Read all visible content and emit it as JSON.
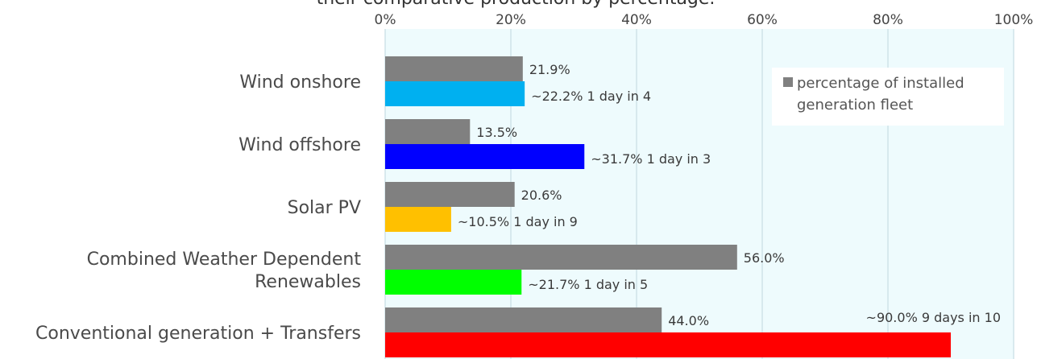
{
  "chart_data": {
    "type": "bar",
    "orientation": "horizontal",
    "title": "their comparative production by percentage.",
    "categories": [
      [
        "Wind onshore"
      ],
      [
        "Wind offshore"
      ],
      [
        "Solar PV"
      ],
      [
        "Combined Weather Dependent",
        "Renewables"
      ],
      [
        "Conventional generation + Transfers"
      ]
    ],
    "xlim": [
      0,
      100
    ],
    "x_ticks": [
      "0%",
      "20%",
      "40%",
      "60%",
      "80%",
      "100%"
    ],
    "x_axis_position": "top",
    "grid": true,
    "series": [
      {
        "name": "percentage of installed generation fleet",
        "color": "#808080",
        "values": [
          21.9,
          13.5,
          20.6,
          56.0,
          44.0
        ],
        "labels": [
          "21.9%",
          "13.5%",
          "20.6%",
          "56.0%",
          "44.0%"
        ]
      },
      {
        "colors": [
          "#00b0f0",
          "#0000ff",
          "#ffc000",
          "#00ff00",
          "#ff0000"
        ],
        "values": [
          22.2,
          31.7,
          10.5,
          21.7,
          90.0
        ],
        "labels": [
          "~22.2%  1 day in 4",
          "~31.7%  1 day in 3",
          "~10.5%  1 day in 9",
          "~21.7%  1 day in 5",
          "~90.0%  9 days in 10"
        ]
      }
    ],
    "legend": {
      "position": "top-right",
      "lines": [
        "percentage of installed",
        "generation fleet"
      ]
    },
    "plot_background": "#eefbfd",
    "gridline_color": "#cfe3ea"
  }
}
